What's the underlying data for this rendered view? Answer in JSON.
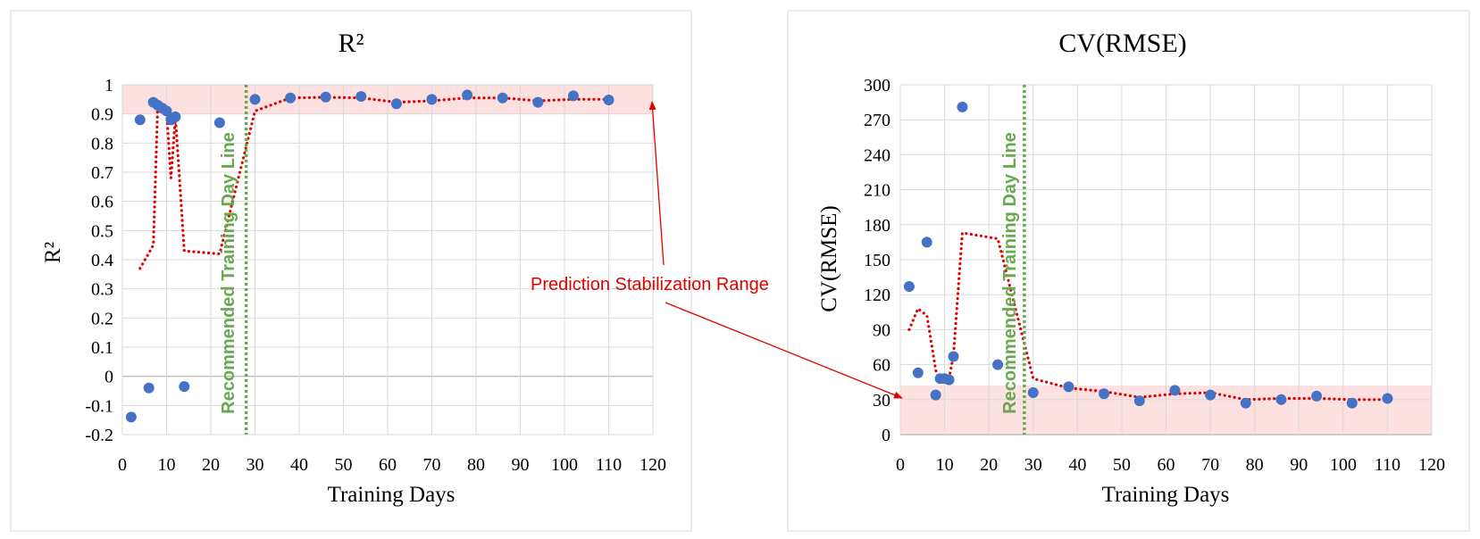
{
  "chart_data": [
    {
      "type": "scatter",
      "title": "R²",
      "xlabel": "Training Days",
      "ylabel": "R²",
      "xlim": [
        0,
        120
      ],
      "ylim": [
        -0.2,
        1
      ],
      "x_ticks": [
        0,
        10,
        20,
        30,
        40,
        50,
        60,
        70,
        80,
        90,
        100,
        110,
        120
      ],
      "y_ticks": [
        -0.2,
        -0.1,
        0,
        0.1,
        0.2,
        0.3,
        0.4,
        0.5,
        0.6,
        0.7,
        0.8,
        0.9,
        1
      ],
      "y_tick_labels": [
        "-0.2",
        "-0.1",
        "0",
        "0.1",
        "0.2",
        "0.3",
        "0.4",
        "0.5",
        "0.6",
        "0.7",
        "0.8",
        "0.9",
        "1"
      ],
      "grid": true,
      "points": {
        "x": [
          2,
          4,
          6,
          7,
          8,
          9,
          10,
          11,
          12,
          14,
          22,
          30,
          38,
          46,
          54,
          62,
          70,
          78,
          86,
          94,
          102,
          110
        ],
        "y": [
          -0.14,
          0.88,
          -0.04,
          0.94,
          0.93,
          0.92,
          0.91,
          0.88,
          0.89,
          -0.035,
          0.87,
          0.95,
          0.955,
          0.958,
          0.96,
          0.935,
          0.95,
          0.965,
          0.955,
          0.94,
          0.962,
          0.948
        ]
      },
      "trend_line": {
        "x": [
          4,
          7,
          8,
          9,
          10,
          11,
          12,
          14,
          22,
          30,
          38,
          46,
          54,
          62,
          70,
          78,
          86,
          94,
          102,
          110
        ],
        "y": [
          0.37,
          0.45,
          0.93,
          0.92,
          0.91,
          0.68,
          0.89,
          0.43,
          0.42,
          0.91,
          0.955,
          0.957,
          0.955,
          0.94,
          0.945,
          0.955,
          0.955,
          0.945,
          0.95,
          0.95
        ]
      },
      "stabilization_band": [
        0.9,
        1.0
      ],
      "recommended_line_x": 28,
      "recommended_label": "Recommended Training Day Line"
    },
    {
      "type": "scatter",
      "title": "CV(RMSE)",
      "xlabel": "Training Days",
      "ylabel": "CV(RMSE)",
      "xlim": [
        0,
        120
      ],
      "ylim": [
        0,
        300
      ],
      "x_ticks": [
        0,
        10,
        20,
        30,
        40,
        50,
        60,
        70,
        80,
        90,
        100,
        110,
        120
      ],
      "y_ticks": [
        0,
        30,
        60,
        90,
        120,
        150,
        180,
        210,
        240,
        270,
        300
      ],
      "y_tick_labels": [
        "0",
        "30",
        "60",
        "90",
        "120",
        "150",
        "180",
        "210",
        "240",
        "270",
        "300"
      ],
      "grid": true,
      "points": {
        "x": [
          2,
          4,
          6,
          8,
          9,
          10,
          11,
          12,
          14,
          22,
          30,
          38,
          46,
          54,
          62,
          70,
          78,
          86,
          94,
          102,
          110
        ],
        "y": [
          127,
          53,
          165,
          34,
          48,
          48,
          47,
          67,
          281,
          60,
          36,
          41,
          35,
          29,
          38,
          34,
          27,
          30,
          33,
          27,
          31
        ]
      },
      "trend_line": {
        "x": [
          2,
          4,
          6,
          8,
          9,
          10,
          11,
          12,
          14,
          22,
          30,
          38,
          46,
          54,
          62,
          70,
          78,
          86,
          94,
          102,
          110
        ],
        "y": [
          90,
          108,
          102,
          55,
          45,
          50,
          48,
          68,
          173,
          168,
          48,
          40,
          37,
          32,
          35,
          36,
          30,
          31,
          31,
          30,
          30
        ]
      },
      "stabilization_band": [
        0,
        42
      ],
      "recommended_line_x": 28,
      "recommended_label": "Recommended Training Day Line"
    }
  ],
  "annotation": {
    "text": "Prediction Stabilization Range",
    "color": "#e00000"
  },
  "colors": {
    "point": "#4472c4",
    "trend": "#e00000",
    "band": "#fde0e0",
    "recommended": "#6aa84f",
    "grid": "#d9d9d9",
    "zero_line": "#bfbfbf",
    "border": "#d9d9d9",
    "text": "#000000"
  }
}
